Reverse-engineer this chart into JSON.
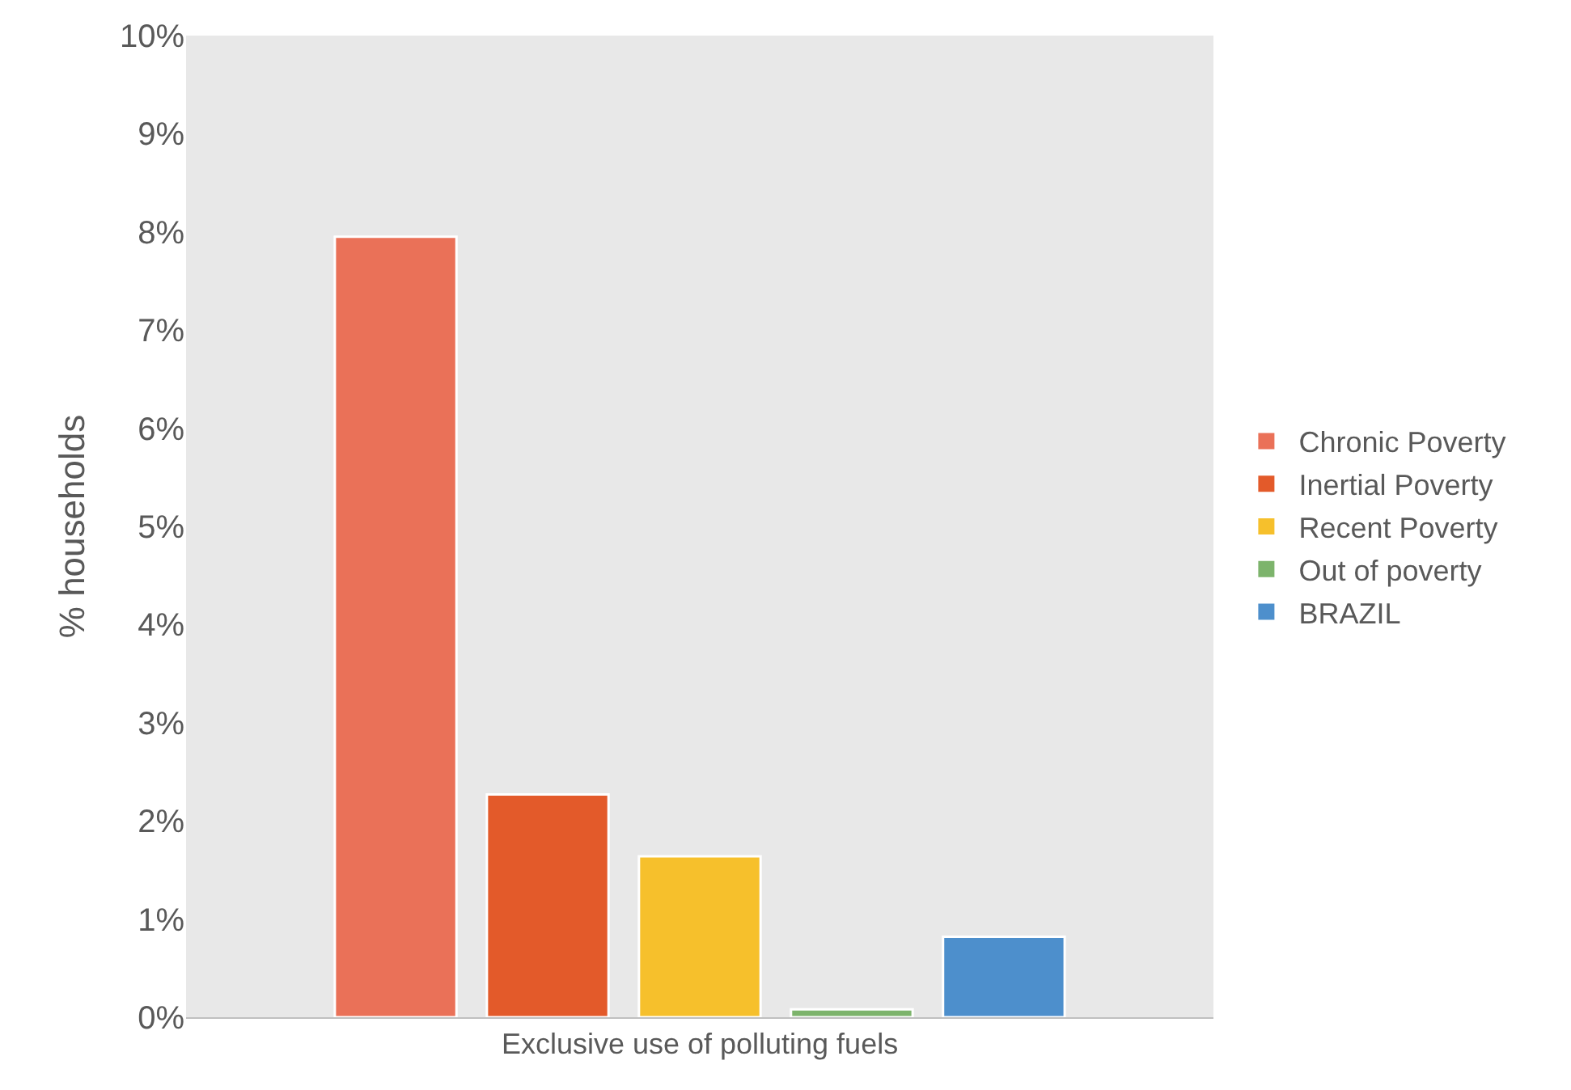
{
  "chart_data": {
    "type": "bar",
    "ylabel": "% households",
    "categories": [
      "Exclusive use of polluting fuels"
    ],
    "series": [
      {
        "name": "Chronic Poverty",
        "color": "#ea7158",
        "values": [
          7.95
        ]
      },
      {
        "name": "Inertial Poverty",
        "color": "#e35a2a",
        "values": [
          2.27
        ]
      },
      {
        "name": "Recent Poverty",
        "color": "#f6c02c",
        "values": [
          1.64
        ]
      },
      {
        "name": "Out of poverty",
        "color": "#7db46c",
        "values": [
          0.08
        ]
      },
      {
        "name": "BRAZIL",
        "color": "#4d8fcc",
        "values": [
          0.82
        ]
      }
    ],
    "ylim": [
      0,
      10
    ],
    "yticks": [
      {
        "value": 0,
        "label": "0%"
      },
      {
        "value": 1,
        "label": "1%"
      },
      {
        "value": 2,
        "label": "2%"
      },
      {
        "value": 3,
        "label": "3%"
      },
      {
        "value": 4,
        "label": "4%"
      },
      {
        "value": 5,
        "label": "5%"
      },
      {
        "value": 6,
        "label": "6%"
      },
      {
        "value": 7,
        "label": "7%"
      },
      {
        "value": 8,
        "label": "8%"
      },
      {
        "value": 9,
        "label": "9%"
      },
      {
        "value": 10,
        "label": "10%"
      }
    ],
    "grid": false,
    "legend": "right"
  }
}
